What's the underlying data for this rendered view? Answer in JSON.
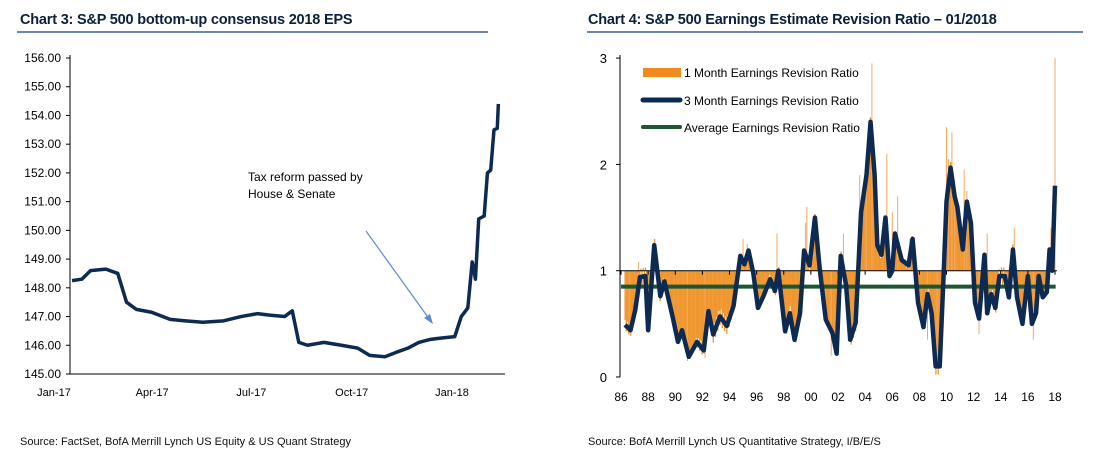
{
  "chart_data": [
    {
      "type": "line",
      "title": "Chart 3:  S&P 500 bottom-up consensus 2018 EPS",
      "source": "Source: FactSet, BofA Merrill Lynch US Equity & US Quant Strategy",
      "ylim": [
        145,
        156
      ],
      "yticks": [
        "156.00",
        "155.00",
        "154.00",
        "153.00",
        "152.00",
        "151.00",
        "150.00",
        "149.00",
        "148.00",
        "147.00",
        "146.00",
        "145.00"
      ],
      "xticks": [
        {
          "label": "Jan-17",
          "date": "2017-01-01"
        },
        {
          "label": "Apr-17",
          "date": "2017-04-01"
        },
        {
          "label": "Jul-17",
          "date": "2017-07-01"
        },
        {
          "label": "Oct-17",
          "date": "2017-10-01"
        },
        {
          "label": "Jan-18",
          "date": "2018-01-01"
        }
      ],
      "annotation": {
        "line1": "Tax reform passed by",
        "line2": "House & Senate",
        "points_to_date": "2017-12-01"
      },
      "line_color": "#0d2b52",
      "series": [
        [
          "2017-01-01",
          148.25
        ],
        [
          "2017-01-10",
          148.3
        ],
        [
          "2017-01-18",
          148.6
        ],
        [
          "2017-02-01",
          148.65
        ],
        [
          "2017-02-12",
          148.5
        ],
        [
          "2017-02-20",
          147.5
        ],
        [
          "2017-03-01",
          147.25
        ],
        [
          "2017-03-15",
          147.15
        ],
        [
          "2017-04-01",
          146.9
        ],
        [
          "2017-04-15",
          146.85
        ],
        [
          "2017-05-01",
          146.8
        ],
        [
          "2017-05-20",
          146.85
        ],
        [
          "2017-06-05",
          147.0
        ],
        [
          "2017-06-20",
          147.1
        ],
        [
          "2017-07-01",
          147.05
        ],
        [
          "2017-07-15",
          147.0
        ],
        [
          "2017-07-22",
          147.2
        ],
        [
          "2017-07-28",
          146.1
        ],
        [
          "2017-08-05",
          146.0
        ],
        [
          "2017-08-20",
          146.1
        ],
        [
          "2017-09-05",
          146.0
        ],
        [
          "2017-09-20",
          145.9
        ],
        [
          "2017-10-01",
          145.65
        ],
        [
          "2017-10-15",
          145.6
        ],
        [
          "2017-10-25",
          145.75
        ],
        [
          "2017-11-05",
          145.9
        ],
        [
          "2017-11-15",
          146.1
        ],
        [
          "2017-11-25",
          146.2
        ],
        [
          "2017-12-05",
          146.25
        ],
        [
          "2017-12-18",
          146.3
        ],
        [
          "2017-12-24",
          147.0
        ],
        [
          "2017-12-30",
          147.3
        ],
        [
          "2018-01-03",
          148.9
        ],
        [
          "2018-01-06",
          148.3
        ],
        [
          "2018-01-09",
          150.4
        ],
        [
          "2018-01-14",
          150.5
        ],
        [
          "2018-01-17",
          152.0
        ],
        [
          "2018-01-20",
          152.1
        ],
        [
          "2018-01-23",
          153.5
        ],
        [
          "2018-01-26",
          153.55
        ],
        [
          "2018-01-27",
          154.4
        ]
      ]
    },
    {
      "type": "bar+line",
      "title": "Chart 4: S&P 500 Earnings Estimate Revision Ratio – 01/2018",
      "source": "Source: BofA Merrill Lynch US Quantitative Strategy, I/B/E/S",
      "ylim": [
        0,
        3
      ],
      "yticks": [
        "0",
        "1",
        "2",
        "3"
      ],
      "xticks": [
        "86",
        "88",
        "90",
        "92",
        "94",
        "96",
        "98",
        "00",
        "02",
        "04",
        "06",
        "08",
        "10",
        "12",
        "14",
        "16",
        "18"
      ],
      "xlim": [
        1986,
        2018
      ],
      "legend": {
        "placement": "top-left",
        "items": [
          {
            "label": "1 Month Earnings Revision Ratio",
            "color": "#f08a1c"
          },
          {
            "label": "3 Month Earnings Revision Ratio",
            "color": "#0d2b52"
          },
          {
            "label": "Average Earnings Revision Ratio",
            "color": "#1e5631"
          }
        ]
      },
      "bar_baseline": 1,
      "average": 0.85,
      "series_3m": [
        [
          1986.3,
          0.49
        ],
        [
          1986.7,
          0.44
        ],
        [
          1987.05,
          0.63
        ],
        [
          1987.4,
          0.94
        ],
        [
          1987.8,
          0.95
        ],
        [
          1988.0,
          0.44
        ],
        [
          1988.45,
          1.24
        ],
        [
          1988.9,
          0.76
        ],
        [
          1989.2,
          0.9
        ],
        [
          1989.8,
          0.57
        ],
        [
          1990.2,
          0.33
        ],
        [
          1990.5,
          0.44
        ],
        [
          1991.0,
          0.19
        ],
        [
          1991.6,
          0.33
        ],
        [
          1992.1,
          0.25
        ],
        [
          1992.45,
          0.62
        ],
        [
          1992.8,
          0.4
        ],
        [
          1993.3,
          0.57
        ],
        [
          1993.8,
          0.48
        ],
        [
          1994.3,
          0.67
        ],
        [
          1994.8,
          1.14
        ],
        [
          1995.1,
          1.06
        ],
        [
          1995.4,
          1.19
        ],
        [
          1995.75,
          0.98
        ],
        [
          1996.1,
          0.65
        ],
        [
          1996.5,
          0.76
        ],
        [
          1997.0,
          0.92
        ],
        [
          1997.35,
          0.81
        ],
        [
          1997.6,
          1.0
        ],
        [
          1998.1,
          0.43
        ],
        [
          1998.45,
          0.6
        ],
        [
          1998.8,
          0.35
        ],
        [
          1999.2,
          0.6
        ],
        [
          1999.5,
          1.19
        ],
        [
          1999.9,
          1.05
        ],
        [
          2000.3,
          1.5
        ],
        [
          2000.65,
          1.02
        ],
        [
          2001.1,
          0.54
        ],
        [
          2001.6,
          0.41
        ],
        [
          2001.9,
          0.22
        ],
        [
          2002.2,
          1.14
        ],
        [
          2002.6,
          0.86
        ],
        [
          2002.9,
          0.35
        ],
        [
          2003.3,
          0.51
        ],
        [
          2003.7,
          1.55
        ],
        [
          2004.1,
          1.9
        ],
        [
          2004.4,
          2.4
        ],
        [
          2004.7,
          1.9
        ],
        [
          2004.9,
          1.24
        ],
        [
          2005.2,
          1.15
        ],
        [
          2005.5,
          1.5
        ],
        [
          2005.8,
          0.95
        ],
        [
          2006.0,
          1.0
        ],
        [
          2006.2,
          1.35
        ],
        [
          2006.7,
          1.1
        ],
        [
          2007.2,
          1.05
        ],
        [
          2007.5,
          1.3
        ],
        [
          2007.9,
          0.7
        ],
        [
          2008.3,
          0.47
        ],
        [
          2008.6,
          0.78
        ],
        [
          2008.9,
          0.6
        ],
        [
          2009.2,
          0.1
        ],
        [
          2009.5,
          0.1
        ],
        [
          2009.8,
          1.0
        ],
        [
          2010.0,
          1.65
        ],
        [
          2010.3,
          1.97
        ],
        [
          2010.6,
          1.7
        ],
        [
          2010.8,
          1.6
        ],
        [
          2011.2,
          1.2
        ],
        [
          2011.5,
          1.65
        ],
        [
          2011.8,
          1.45
        ],
        [
          2012.1,
          0.7
        ],
        [
          2012.4,
          0.55
        ],
        [
          2012.8,
          1.15
        ],
        [
          2013.0,
          0.6
        ],
        [
          2013.3,
          0.78
        ],
        [
          2013.6,
          0.65
        ],
        [
          2013.9,
          0.95
        ],
        [
          2014.3,
          0.95
        ],
        [
          2014.6,
          0.75
        ],
        [
          2014.9,
          1.2
        ],
        [
          2015.2,
          0.75
        ],
        [
          2015.6,
          0.5
        ],
        [
          2016.0,
          0.95
        ],
        [
          2016.3,
          0.5
        ],
        [
          2016.6,
          0.6
        ],
        [
          2016.8,
          0.95
        ],
        [
          2017.1,
          0.75
        ],
        [
          2017.4,
          0.8
        ],
        [
          2017.6,
          1.2
        ],
        [
          2017.8,
          1.0
        ],
        [
          2018.0,
          1.8
        ]
      ],
      "series_1m_spikes": [
        [
          1986.6,
          0.4
        ],
        [
          1987.3,
          1.08
        ],
        [
          1988.5,
          1.3
        ],
        [
          1990.9,
          0.15
        ],
        [
          1992.2,
          0.18
        ],
        [
          1995.0,
          1.3
        ],
        [
          1995.3,
          1.25
        ],
        [
          1997.5,
          1.35
        ],
        [
          1999.6,
          1.45
        ],
        [
          1999.7,
          1.6
        ],
        [
          2001.5,
          0.2
        ],
        [
          2002.4,
          1.35
        ],
        [
          2003.6,
          1.9
        ],
        [
          2004.1,
          2.05
        ],
        [
          2004.5,
          2.95
        ],
        [
          2005.6,
          2.1
        ],
        [
          2006.0,
          1.55
        ],
        [
          2006.4,
          1.7
        ],
        [
          2007.3,
          1.3
        ],
        [
          2008.6,
          0.35
        ],
        [
          2009.3,
          0.15
        ],
        [
          2010.0,
          2.35
        ],
        [
          2010.15,
          2.05
        ],
        [
          2010.4,
          2.3
        ],
        [
          2010.6,
          1.85
        ],
        [
          2011.3,
          1.95
        ],
        [
          2011.5,
          1.75
        ],
        [
          2012.4,
          0.4
        ],
        [
          2013.0,
          1.35
        ],
        [
          2015.0,
          1.4
        ],
        [
          2016.4,
          0.35
        ],
        [
          2017.7,
          1.4
        ],
        [
          2018.0,
          3.0
        ]
      ]
    }
  ]
}
